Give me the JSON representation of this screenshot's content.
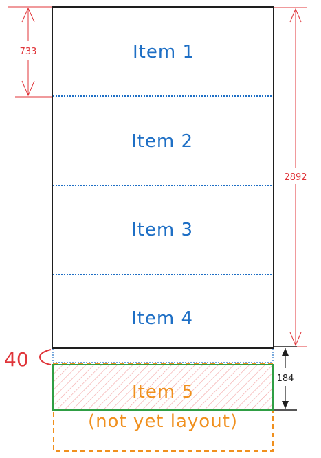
{
  "items": [
    {
      "label": "Item 1"
    },
    {
      "label": "Item 2"
    },
    {
      "label": "Item 3"
    },
    {
      "label": "Item 4"
    }
  ],
  "pending_item": {
    "label": "Item 5",
    "note": "(not yet layout)"
  },
  "dimensions": {
    "item_height": "733",
    "total_height": "2892",
    "pending_height": "184",
    "gap": "40"
  },
  "colors": {
    "item_text": "#1e6fc5",
    "divider": "#1e6fc5",
    "frame": "#1e1e1e",
    "dimension_red": "#e0353a",
    "pending_orange": "#f0901e",
    "pending_green": "#2f9e44",
    "hatch": "#ffc9c9"
  }
}
